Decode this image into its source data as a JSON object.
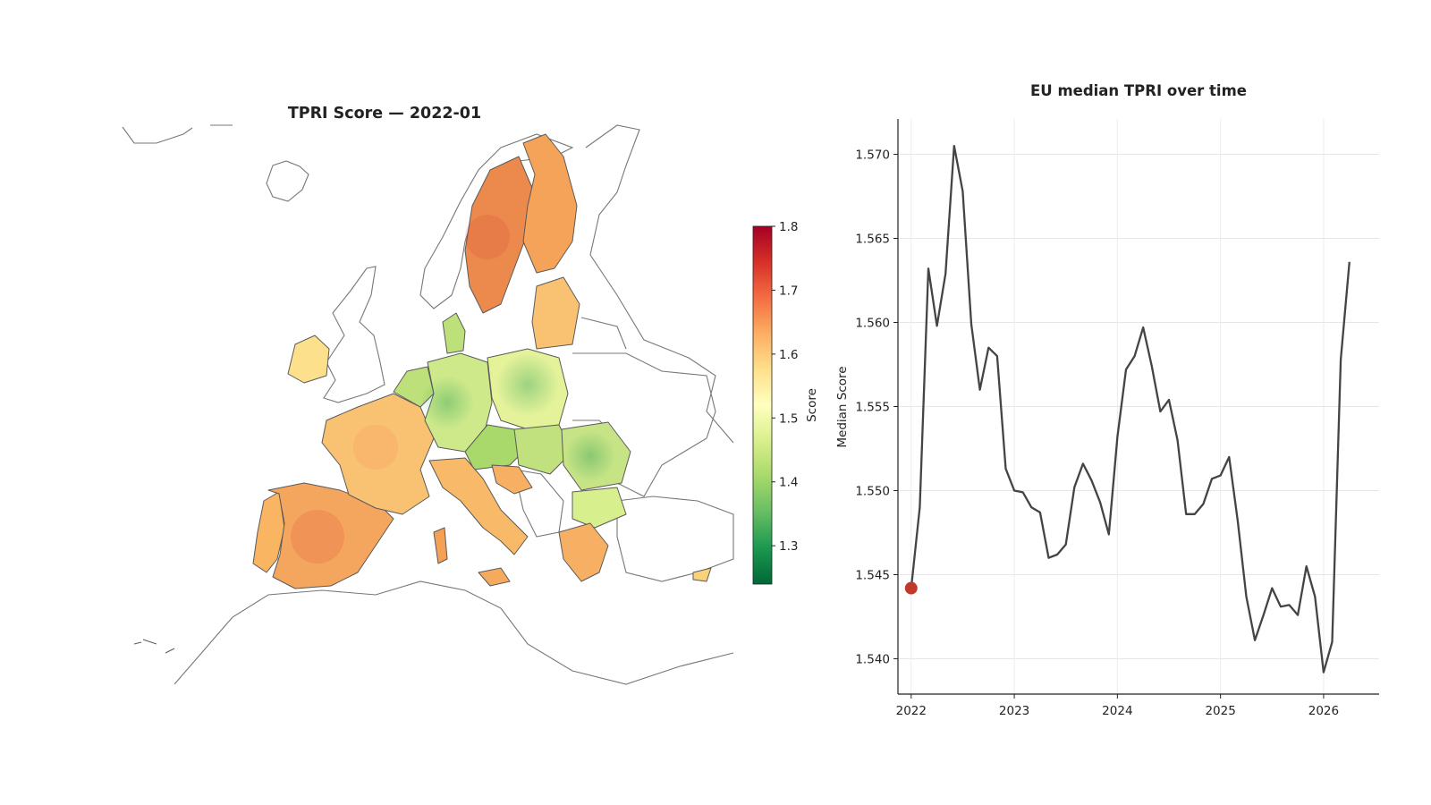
{
  "map_panel": {
    "title": "TPRI Score — 2022-01",
    "colorbar": {
      "label": "Score",
      "min": 1.24,
      "max": 1.8,
      "ticks": [
        1.3,
        1.4,
        1.5,
        1.6,
        1.7,
        1.8
      ],
      "tick_labels": [
        "1.3",
        "1.4",
        "1.5",
        "1.6",
        "1.7",
        "1.8"
      ],
      "colormap": [
        "#006837",
        "#1a9850",
        "#66bd63",
        "#a6d96a",
        "#d9ef8b",
        "#ffffbf",
        "#fee08b",
        "#fdae61",
        "#f46d43",
        "#d73027",
        "#a50026"
      ]
    }
  },
  "chart_data": {
    "type": "line",
    "title": "EU median TPRI over time",
    "xlabel": "",
    "ylabel": "Median Score",
    "xlim": [
      "2021-11-15",
      "2026-07-15"
    ],
    "ylim": [
      1.5379,
      1.5721
    ],
    "x_ticks": [
      "2022",
      "2023",
      "2024",
      "2025",
      "2026"
    ],
    "y_ticks": [
      1.54,
      1.545,
      1.55,
      1.555,
      1.56,
      1.565,
      1.57
    ],
    "y_tick_labels": [
      "1.540",
      "1.545",
      "1.550",
      "1.555",
      "1.560",
      "1.565",
      "1.570"
    ],
    "grid": true,
    "line_color": "#444444",
    "marker_color": "#c0392b",
    "current_point": {
      "x": "2022-01",
      "y": 1.5442
    },
    "series": [
      {
        "x": [
          "2022-01",
          "2022-02",
          "2022-03",
          "2022-04",
          "2022-05",
          "2022-06",
          "2022-07",
          "2022-08",
          "2022-09",
          "2022-10",
          "2022-11",
          "2022-12",
          "2023-01",
          "2023-02",
          "2023-03",
          "2023-04",
          "2023-05",
          "2023-06",
          "2023-07",
          "2023-08",
          "2023-09",
          "2023-10",
          "2023-11",
          "2023-12",
          "2024-01",
          "2024-02",
          "2024-03",
          "2024-04",
          "2024-05",
          "2024-06",
          "2024-07",
          "2024-08",
          "2024-09",
          "2024-10",
          "2024-11",
          "2024-12",
          "2025-01",
          "2025-02",
          "2025-03",
          "2025-04",
          "2025-05",
          "2025-06",
          "2025-07",
          "2025-08",
          "2025-09",
          "2025-10",
          "2025-11",
          "2025-12",
          "2026-01",
          "2026-02",
          "2026-03",
          "2026-04"
        ],
        "y": [
          1.5442,
          1.549,
          1.5632,
          1.5598,
          1.5629,
          1.5705,
          1.5678,
          1.5599,
          1.556,
          1.5585,
          1.558,
          1.5513,
          1.55,
          1.5499,
          1.549,
          1.5487,
          1.546,
          1.5462,
          1.5468,
          1.5502,
          1.5516,
          1.5506,
          1.5493,
          1.5474,
          1.5532,
          1.5572,
          1.558,
          1.5597,
          1.5574,
          1.5547,
          1.5554,
          1.553,
          1.5486,
          1.5486,
          1.5492,
          1.5507,
          1.5509,
          1.552,
          1.5482,
          1.5437,
          1.5411,
          1.5426,
          1.5442,
          1.5431,
          1.5432,
          1.5426,
          1.5455,
          1.5437,
          1.5392,
          1.541,
          1.5578,
          1.5636
        ]
      }
    ]
  }
}
